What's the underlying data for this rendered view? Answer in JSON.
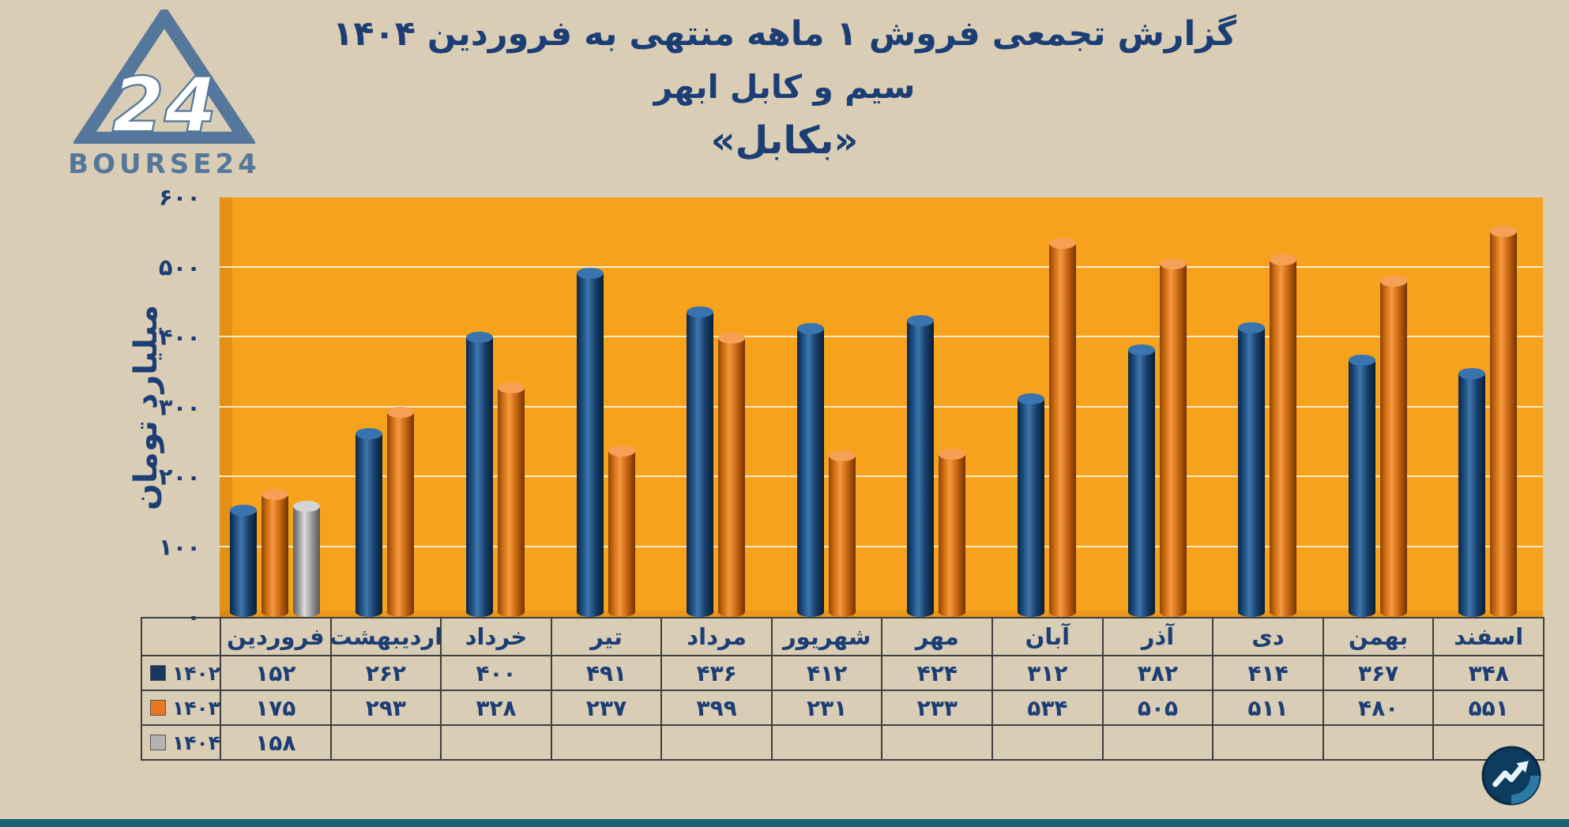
{
  "page": {
    "background": "#d9cdb5",
    "bottom_strip_color": "#176275"
  },
  "branding": {
    "logo_number": "24",
    "logo_text": "BOURSE24",
    "logo_color": "#54779b"
  },
  "header": {
    "title_line1": "گزارش تجمعی فروش ۱ ماهه منتهی به فروردین ۱۴۰۴",
    "title_line2": "سیم و کابل ابهر",
    "title_line3": "«بکابل»"
  },
  "chart_data": {
    "type": "bar",
    "style": "3d-cylinder",
    "title": "گزارش تجمعی فروش ۱ ماهه منتهی به فروردین ۱۴۰۴ سیم و کابل ابهر «بکابل»",
    "xlabel": "",
    "ylabel": "میلیارد تومان",
    "ylim": [
      0,
      600
    ],
    "ytick_step": 100,
    "grid": true,
    "plot_background": "#f7a21c",
    "legend_position": "table-left",
    "yticks": [
      {
        "value": 0,
        "label": "۰"
      },
      {
        "value": 100,
        "label": "۱۰۰"
      },
      {
        "value": 200,
        "label": "۲۰۰"
      },
      {
        "value": 300,
        "label": "۳۰۰"
      },
      {
        "value": 400,
        "label": "۴۰۰"
      },
      {
        "value": 500,
        "label": "۵۰۰"
      },
      {
        "value": 600,
        "label": "۶۰۰"
      }
    ],
    "categories": [
      "فروردین",
      "اردیبهشت",
      "خرداد",
      "تیر",
      "مرداد",
      "شهریور",
      "مهر",
      "آبان",
      "آذر",
      "دی",
      "بهمن",
      "اسفند"
    ],
    "series": [
      {
        "name": "۱۴۰۲",
        "color": "#17375e",
        "values": [
          152,
          262,
          400,
          491,
          436,
          412,
          424,
          312,
          382,
          414,
          367,
          348
        ],
        "labels": [
          "۱۵۲",
          "۲۶۲",
          "۴۰۰",
          "۴۹۱",
          "۴۳۶",
          "۴۱۲",
          "۴۲۴",
          "۳۱۲",
          "۳۸۲",
          "۴۱۴",
          "۳۶۷",
          "۳۴۸"
        ]
      },
      {
        "name": "۱۴۰۳",
        "color": "#e87722",
        "values": [
          175,
          293,
          328,
          237,
          399,
          231,
          233,
          534,
          505,
          511,
          480,
          551
        ],
        "labels": [
          "۱۷۵",
          "۲۹۳",
          "۳۲۸",
          "۲۳۷",
          "۳۹۹",
          "۲۳۱",
          "۲۳۳",
          "۵۳۴",
          "۵۰۵",
          "۵۱۱",
          "۴۸۰",
          "۵۵۱"
        ]
      },
      {
        "name": "۱۴۰۴",
        "color": "#b3b3b3",
        "values": [
          158,
          null,
          null,
          null,
          null,
          null,
          null,
          null,
          null,
          null,
          null,
          null
        ],
        "labels": [
          "۱۵۸",
          "",
          "",
          "",
          "",
          "",
          "",
          "",
          "",
          "",
          "",
          ""
        ]
      }
    ]
  }
}
